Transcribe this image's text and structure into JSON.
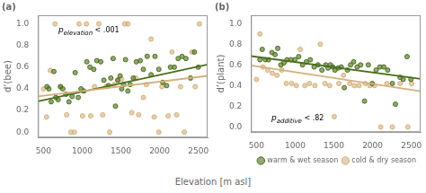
{
  "chart_data": [
    {
      "type": "scatter",
      "title": "(a)",
      "ylabel": "d’(bee)",
      "annotations": [
        {
          "text": "p",
          "subscript": "elevation",
          "after": "< .001"
        }
      ],
      "xlim": [
        430,
        2620
      ],
      "ylim": [
        -0.05,
        1.08
      ],
      "xticks": [
        500,
        1000,
        1500,
        2000,
        2500
      ],
      "yticks": [
        {
          "value": 0.0,
          "label": "0.0"
        },
        0.2,
        0.4,
        0.6,
        0.8,
        {
          "value": 1.0,
          "label": "1.0"
        }
      ],
      "grid": false,
      "legend": false,
      "series": [
        {
          "name": "cold & dry season",
          "color": "#d4b07a",
          "marker": "circle",
          "x": [
            500,
            540,
            590,
            650,
            720,
            800,
            855,
            900,
            960,
            1005,
            1055,
            1110,
            1160,
            1215,
            1265,
            1310,
            1355,
            1410,
            1460,
            1510,
            1550,
            1590,
            1640,
            1690,
            1730,
            1790,
            1830,
            1890,
            1930,
            1990,
            2030,
            2110,
            2160,
            2220,
            2270,
            2320,
            2420,
            2460,
            2515
          ],
          "values": [
            0.4,
            0.14,
            0.57,
            1.0,
            0.42,
            0.16,
            0.0,
            0.0,
            1.0,
            0.15,
            1.0,
            0.15,
            0.42,
            1.0,
            0.16,
            0.42,
            0.0,
            0.44,
            0.48,
            0.49,
            1.0,
            1.0,
            0.18,
            0.5,
            0.16,
            0.32,
            0.44,
            0.86,
            0.14,
            0.0,
            0.42,
            0.15,
            0.74,
            0.16,
            0.42,
            0.0,
            0.74,
            0.42,
            1.0
          ],
          "trend": {
            "x": [
              430,
              2620
            ],
            "values": [
              0.33,
              0.52
            ]
          }
        },
        {
          "name": "warm & wet season",
          "color": "#4a6e1a",
          "marker": "circle",
          "x": [
            545,
            570,
            600,
            635,
            660,
            690,
            720,
            750,
            790,
            830,
            870,
            910,
            950,
            985,
            1020,
            1060,
            1100,
            1150,
            1190,
            1240,
            1280,
            1340,
            1370,
            1400,
            1430,
            1460,
            1490,
            1510,
            1535,
            1560,
            1590,
            1620,
            1660,
            1700,
            1750,
            1790,
            1840,
            1890,
            1940,
            1990,
            2040,
            2090,
            2140,
            2190,
            2240,
            2290,
            2340,
            2400,
            2450,
            2500
          ],
          "values": [
            0.42,
            0.4,
            0.28,
            0.56,
            0.32,
            0.3,
            0.42,
            0.4,
            0.35,
            0.28,
            0.33,
            0.55,
            0.32,
            0.4,
            0.38,
            0.65,
            0.6,
            0.58,
            0.66,
            0.65,
            0.48,
            0.43,
            0.5,
            0.68,
            0.24,
            0.48,
            0.52,
            0.4,
            0.44,
            0.67,
            0.38,
            0.44,
            0.5,
            0.65,
            0.66,
            0.58,
            0.7,
            0.53,
            0.7,
            0.58,
            0.46,
            0.43,
            0.6,
            0.6,
            0.68,
            0.7,
            0.68,
            0.5,
            0.74,
            0.6
          ],
          "trend": {
            "x": [
              430,
              2620
            ],
            "values": [
              0.285,
              0.625
            ]
          }
        }
      ]
    },
    {
      "type": "scatter",
      "title": "(b)",
      "ylabel": "d’(plant)",
      "annotations": [
        {
          "text": "p",
          "subscript": "additive",
          "after": "< .82"
        }
      ],
      "xlim": [
        430,
        2620
      ],
      "ylim": [
        -0.05,
        1.08
      ],
      "xticks": [
        500,
        1000,
        1500,
        2000,
        2500
      ],
      "yticks": [
        {
          "value": 0.0,
          "label": "0.0"
        },
        0.2,
        0.4,
        0.6,
        0.8,
        {
          "value": 1.0,
          "label": "1.0"
        }
      ],
      "grid": false,
      "legend": "lower right",
      "series": [
        {
          "name": "cold & dry season",
          "color": "#d4b07a",
          "marker": "circle",
          "x": [
            500,
            545,
            585,
            645,
            705,
            765,
            825,
            885,
            955,
            1015,
            1065,
            1125,
            1185,
            1255,
            1325,
            1385,
            1445,
            1505,
            1565,
            1625,
            1705,
            1765,
            1825,
            1905,
            1965,
            2025,
            2105,
            2185,
            2255,
            2355,
            2455,
            2505
          ],
          "values": [
            0.46,
            0.9,
            0.58,
            0.55,
            0.52,
            0.5,
            0.55,
            0.42,
            0.42,
            0.4,
            0.75,
            0.4,
            0.42,
            0.4,
            0.8,
            0.42,
            0.4,
            0.1,
            0.42,
            0.5,
            0.42,
            0.4,
            0.4,
            0.42,
            0.4,
            0.4,
            0.0,
            0.42,
            0.0,
            0.42,
            0.0,
            0.42
          ],
          "trend": {
            "x": [
              430,
              2620
            ],
            "values": [
              0.595,
              0.345
            ]
          }
        },
        {
          "name": "warm & wet season",
          "color": "#4a6e1a",
          "marker": "circle",
          "x": [
            545,
            575,
            615,
            655,
            700,
            740,
            775,
            815,
            855,
            895,
            945,
            995,
            1045,
            1095,
            1145,
            1195,
            1245,
            1295,
            1345,
            1395,
            1425,
            1455,
            1485,
            1515,
            1555,
            1595,
            1635,
            1675,
            1715,
            1755,
            1800,
            1845,
            1895,
            1945,
            1995,
            2045,
            2095,
            2145,
            2195,
            2255,
            2295,
            2355,
            2395,
            2445,
            2495
          ],
          "values": [
            0.65,
            0.75,
            0.65,
            0.65,
            0.72,
            0.7,
            0.76,
            0.6,
            0.62,
            0.65,
            0.65,
            0.65,
            0.68,
            0.6,
            0.63,
            0.65,
            0.58,
            0.6,
            0.55,
            0.6,
            0.57,
            0.6,
            0.58,
            0.55,
            0.57,
            0.58,
            0.38,
            0.55,
            0.6,
            0.63,
            0.58,
            0.6,
            0.25,
            0.6,
            0.42,
            0.55,
            0.58,
            0.58,
            0.55,
            0.42,
            0.22,
            0.48,
            0.46,
            0.68,
            0.46
          ],
          "trend": {
            "x": [
              430,
              2620
            ],
            "values": [
              0.685,
              0.465
            ]
          }
        }
      ]
    }
  ],
  "xlabel": "Elevation [m asl]"
}
